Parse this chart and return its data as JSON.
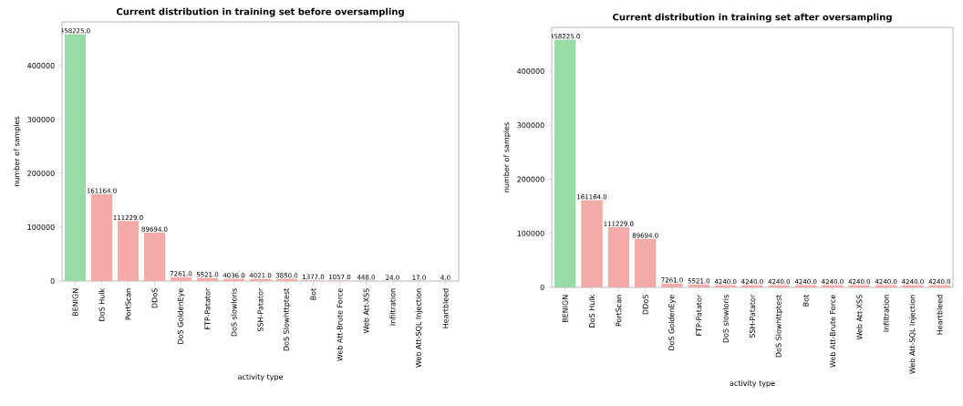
{
  "chart_data": [
    {
      "type": "bar",
      "title": "Current distribution in training set before oversampling",
      "xlabel": "activity type",
      "ylabel": "number of samples",
      "categories": [
        "BENIGN",
        "DoS Hulk",
        "PortScan",
        "DDoS",
        "DoS GoldenEye",
        "FTP-Patator",
        "DoS slowloris",
        "SSH-Patator",
        "DoS Slowhttptest",
        "Bot",
        "Web Att-Brute Force",
        "Web Att-XSS",
        "Infiltration",
        "Web Att-SQL Injection",
        "Heartbleed"
      ],
      "values": [
        458225,
        161164,
        111229,
        89694,
        7261,
        5521,
        4036,
        4021,
        3850,
        1377,
        1057,
        448,
        24,
        17,
        4
      ],
      "value_labels": [
        "458225.0",
        "161164.0",
        "111229.0",
        "89694.0",
        "7261.0",
        "5521.0",
        "4036.0",
        "4021.0",
        "3850.0",
        "1377.0",
        "1057.0",
        "448.0",
        "24.0",
        "17.0",
        "4.0"
      ],
      "colors": [
        "#98dba7",
        "#f4aaa6",
        "#f4aaa6",
        "#f4aaa6",
        "#f4aaa6",
        "#f4aaa6",
        "#f4aaa6",
        "#f4aaa6",
        "#f4aaa6",
        "#f4aaa6",
        "#f4aaa6",
        "#f4aaa6",
        "#f4aaa6",
        "#f4aaa6",
        "#f4aaa6"
      ],
      "ylim": [
        0,
        481136
      ],
      "yticks": [
        0,
        100000,
        200000,
        300000,
        400000
      ]
    },
    {
      "type": "bar",
      "title": "Current distribution in training set after oversampling",
      "xlabel": "activity type",
      "ylabel": "number of samples",
      "categories": [
        "BENIGN",
        "DoS Hulk",
        "PortScan",
        "DDoS",
        "DoS GoldenEye",
        "FTP-Patator",
        "DoS slowloris",
        "SSH-Patator",
        "DoS Slowhttptest",
        "Bot",
        "Web Att-Brute Force",
        "Web Att-XSS",
        "Infiltration",
        "Web Att-SQL Injection",
        "Heartbleed"
      ],
      "values": [
        458225,
        161164,
        111229,
        89694,
        7261,
        5521,
        4240,
        4240,
        4240,
        4240,
        4240,
        4240,
        4240,
        4240,
        4240
      ],
      "value_labels": [
        "458225.0",
        "161164.0",
        "111229.0",
        "89694.0",
        "7261.0",
        "5521.0",
        "4240.0",
        "4240.0",
        "4240.0",
        "4240.0",
        "4240.0",
        "4240.0",
        "4240.0",
        "4240.0",
        "4240.0"
      ],
      "colors": [
        "#98dba7",
        "#f4aaa6",
        "#f4aaa6",
        "#f4aaa6",
        "#f4aaa6",
        "#f4aaa6",
        "#f4aaa6",
        "#f4aaa6",
        "#f4aaa6",
        "#f4aaa6",
        "#f4aaa6",
        "#f4aaa6",
        "#f4aaa6",
        "#f4aaa6",
        "#f4aaa6"
      ],
      "ylim": [
        0,
        481136
      ],
      "yticks": [
        0,
        100000,
        200000,
        300000,
        400000
      ]
    }
  ]
}
